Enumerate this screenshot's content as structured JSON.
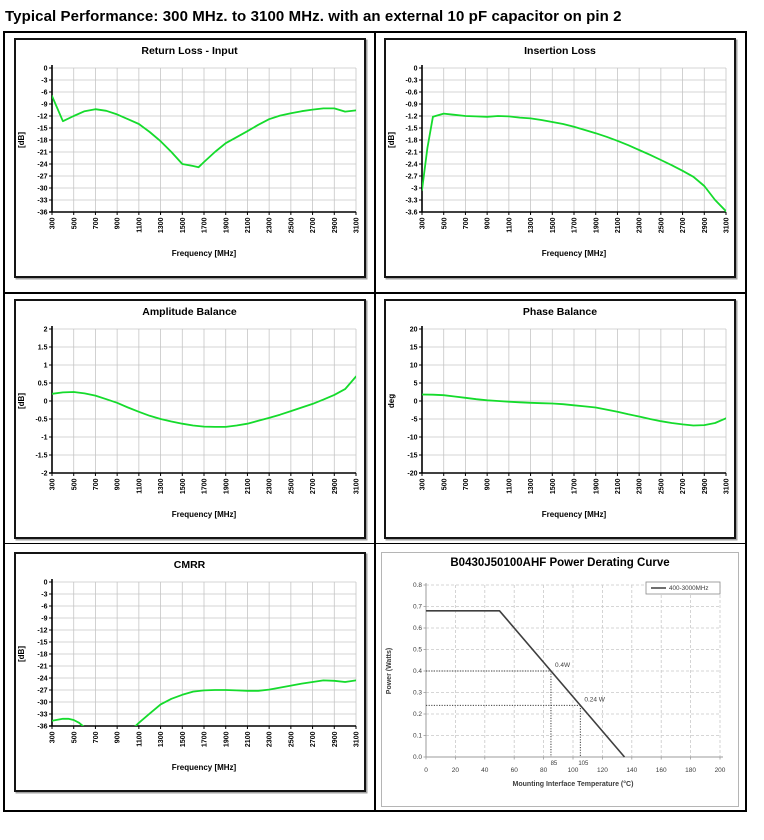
{
  "page": {
    "title": "Typical Performance: 300 MHz. to 3100 MHz. with an external 10 pF capacitor on pin 2"
  },
  "colors": {
    "curve_green": "#15DB2C",
    "grid_gray": "#C6C6C6",
    "axis_black": "#000000",
    "power_curve": "#3F3F3F",
    "power_grid": "#C9C9C9",
    "power_axis": "#9B9B9B"
  },
  "chart_data": [
    {
      "id": "return-loss-input",
      "type": "line",
      "style": "green",
      "title": "Return Loss - Input",
      "xlabel": "Frequency [MHz]",
      "ylabel": "[dB]",
      "xlim": [
        300,
        3100
      ],
      "xtick_step": 200,
      "ylim": [
        -36,
        0
      ],
      "ytick_step": 3,
      "grid": true,
      "series": [
        {
          "name": "return-loss",
          "points": [
            [
              300,
              -7
            ],
            [
              400,
              -13.3
            ],
            [
              500,
              -12
            ],
            [
              600,
              -10.8
            ],
            [
              700,
              -10.3
            ],
            [
              800,
              -10.7
            ],
            [
              900,
              -11.6
            ],
            [
              1000,
              -12.8
            ],
            [
              1100,
              -14
            ],
            [
              1200,
              -16
            ],
            [
              1300,
              -18.3
            ],
            [
              1400,
              -21
            ],
            [
              1500,
              -24
            ],
            [
              1600,
              -24.5
            ],
            [
              1650,
              -24.8
            ],
            [
              1700,
              -23.5
            ],
            [
              1800,
              -21
            ],
            [
              1900,
              -18.8
            ],
            [
              2000,
              -17.3
            ],
            [
              2100,
              -15.8
            ],
            [
              2200,
              -14.2
            ],
            [
              2300,
              -12.8
            ],
            [
              2400,
              -11.9
            ],
            [
              2500,
              -11.3
            ],
            [
              2600,
              -10.8
            ],
            [
              2700,
              -10.4
            ],
            [
              2800,
              -10.1
            ],
            [
              2900,
              -10.1
            ],
            [
              3000,
              -10.9
            ],
            [
              3100,
              -10.6
            ]
          ]
        }
      ]
    },
    {
      "id": "insertion-loss",
      "type": "line",
      "style": "green",
      "title": "Insertion Loss",
      "xlabel": "Frequency [MHz]",
      "ylabel": "[dB]",
      "xlim": [
        300,
        3100
      ],
      "xtick_step": 200,
      "ylim": [
        -3.6,
        0
      ],
      "ytick_step": 0.3,
      "grid": true,
      "series": [
        {
          "name": "insertion-loss",
          "points": [
            [
              300,
              -3.05
            ],
            [
              350,
              -2.0
            ],
            [
              400,
              -1.22
            ],
            [
              500,
              -1.14
            ],
            [
              600,
              -1.17
            ],
            [
              700,
              -1.2
            ],
            [
              800,
              -1.21
            ],
            [
              900,
              -1.22
            ],
            [
              1000,
              -1.2
            ],
            [
              1100,
              -1.21
            ],
            [
              1200,
              -1.24
            ],
            [
              1300,
              -1.26
            ],
            [
              1400,
              -1.3
            ],
            [
              1500,
              -1.35
            ],
            [
              1600,
              -1.4
            ],
            [
              1700,
              -1.47
            ],
            [
              1800,
              -1.55
            ],
            [
              1900,
              -1.63
            ],
            [
              2000,
              -1.72
            ],
            [
              2100,
              -1.82
            ],
            [
              2200,
              -1.93
            ],
            [
              2300,
              -2.05
            ],
            [
              2400,
              -2.17
            ],
            [
              2500,
              -2.3
            ],
            [
              2600,
              -2.43
            ],
            [
              2700,
              -2.57
            ],
            [
              2800,
              -2.72
            ],
            [
              2900,
              -2.95
            ],
            [
              3000,
              -3.3
            ],
            [
              3100,
              -3.58
            ]
          ]
        }
      ]
    },
    {
      "id": "amplitude-balance",
      "type": "line",
      "style": "green",
      "title": "Amplitude Balance",
      "xlabel": "Frequency [MHz]",
      "ylabel": "[dB]",
      "xlim": [
        300,
        3100
      ],
      "xtick_step": 200,
      "ylim": [
        -2,
        2
      ],
      "ytick_step": 0.5,
      "grid": true,
      "series": [
        {
          "name": "amplitude-balance",
          "points": [
            [
              300,
              0.2
            ],
            [
              400,
              0.24
            ],
            [
              500,
              0.25
            ],
            [
              600,
              0.21
            ],
            [
              700,
              0.15
            ],
            [
              800,
              0.05
            ],
            [
              900,
              -0.05
            ],
            [
              1000,
              -0.18
            ],
            [
              1100,
              -0.3
            ],
            [
              1200,
              -0.41
            ],
            [
              1300,
              -0.5
            ],
            [
              1400,
              -0.57
            ],
            [
              1500,
              -0.63
            ],
            [
              1600,
              -0.68
            ],
            [
              1700,
              -0.71
            ],
            [
              1800,
              -0.72
            ],
            [
              1900,
              -0.72
            ],
            [
              2000,
              -0.68
            ],
            [
              2100,
              -0.63
            ],
            [
              2200,
              -0.55
            ],
            [
              2300,
              -0.47
            ],
            [
              2400,
              -0.38
            ],
            [
              2500,
              -0.28
            ],
            [
              2600,
              -0.18
            ],
            [
              2700,
              -0.08
            ],
            [
              2800,
              0.04
            ],
            [
              2900,
              0.17
            ],
            [
              3000,
              0.33
            ],
            [
              3100,
              0.68
            ]
          ]
        }
      ]
    },
    {
      "id": "phase-balance",
      "type": "line",
      "style": "green",
      "title": "Phase Balance",
      "xlabel": "Frequency [MHz]",
      "ylabel": "deg",
      "xlim": [
        300,
        3100
      ],
      "xtick_step": 200,
      "ylim": [
        -20,
        20
      ],
      "ytick_step": 5,
      "grid": true,
      "series": [
        {
          "name": "phase-balance",
          "points": [
            [
              300,
              1.8
            ],
            [
              400,
              1.75
            ],
            [
              500,
              1.6
            ],
            [
              600,
              1.25
            ],
            [
              700,
              0.9
            ],
            [
              800,
              0.5
            ],
            [
              900,
              0.2
            ],
            [
              1000,
              0
            ],
            [
              1100,
              -0.2
            ],
            [
              1200,
              -0.35
            ],
            [
              1300,
              -0.5
            ],
            [
              1400,
              -0.6
            ],
            [
              1500,
              -0.7
            ],
            [
              1600,
              -0.9
            ],
            [
              1700,
              -1.2
            ],
            [
              1800,
              -1.5
            ],
            [
              1900,
              -1.8
            ],
            [
              2000,
              -2.4
            ],
            [
              2100,
              -3
            ],
            [
              2200,
              -3.7
            ],
            [
              2300,
              -4.3
            ],
            [
              2400,
              -5
            ],
            [
              2500,
              -5.6
            ],
            [
              2600,
              -6.1
            ],
            [
              2700,
              -6.5
            ],
            [
              2800,
              -6.8
            ],
            [
              2900,
              -6.7
            ],
            [
              3000,
              -6.1
            ],
            [
              3100,
              -4.8
            ]
          ]
        }
      ]
    },
    {
      "id": "cmrr",
      "type": "line",
      "style": "green",
      "title": "CMRR",
      "xlabel": "Frequency [MHz]",
      "ylabel": "[dB]",
      "xlim": [
        300,
        3100
      ],
      "xtick_step": 200,
      "ylim": [
        -36,
        0
      ],
      "ytick_step": 3,
      "grid": true,
      "series": [
        {
          "name": "cmrr-low-segment",
          "points": [
            [
              300,
              -34.7
            ],
            [
              400,
              -34.2
            ],
            [
              450,
              -34.2
            ],
            [
              500,
              -34.5
            ],
            [
              550,
              -35.2
            ],
            [
              620,
              -36.8
            ]
          ]
        },
        {
          "name": "cmrr-high-segment",
          "points": [
            [
              1040,
              -36.8
            ],
            [
              1100,
              -35.2
            ],
            [
              1200,
              -32.9
            ],
            [
              1300,
              -30.6
            ],
            [
              1400,
              -29.2
            ],
            [
              1500,
              -28.2
            ],
            [
              1600,
              -27.4
            ],
            [
              1700,
              -27.1
            ],
            [
              1800,
              -27
            ],
            [
              1900,
              -27
            ],
            [
              2000,
              -27.1
            ],
            [
              2100,
              -27.2
            ],
            [
              2200,
              -27.2
            ],
            [
              2300,
              -26.9
            ],
            [
              2400,
              -26.4
            ],
            [
              2500,
              -25.9
            ],
            [
              2600,
              -25.4
            ],
            [
              2700,
              -25
            ],
            [
              2800,
              -24.6
            ],
            [
              2900,
              -24.7
            ],
            [
              3000,
              -25
            ],
            [
              3100,
              -24.6
            ]
          ]
        }
      ]
    },
    {
      "id": "power-derating",
      "type": "line",
      "style": "excel",
      "title": "B0430J50100AHF Power Derating Curve",
      "xlabel": "Mounting Interface Temperature (°C)",
      "ylabel": "Power (Watts)",
      "xlim": [
        0,
        200
      ],
      "xtick_step": 20,
      "extra_xticks": [
        85,
        105
      ],
      "ylim": [
        0,
        0.8
      ],
      "ytick_step": 0.1,
      "grid": true,
      "legend": {
        "position": "top-right",
        "label": "400-3000MHz"
      },
      "series": [
        {
          "name": "400-3000MHz",
          "points": [
            [
              0,
              0.68
            ],
            [
              50,
              0.68
            ],
            [
              135,
              0
            ]
          ]
        }
      ],
      "annotations": [
        {
          "label": "0.4W",
          "x": 85,
          "y": 0.4
        },
        {
          "label": "0.24 W",
          "x": 105,
          "y": 0.24
        }
      ]
    }
  ]
}
